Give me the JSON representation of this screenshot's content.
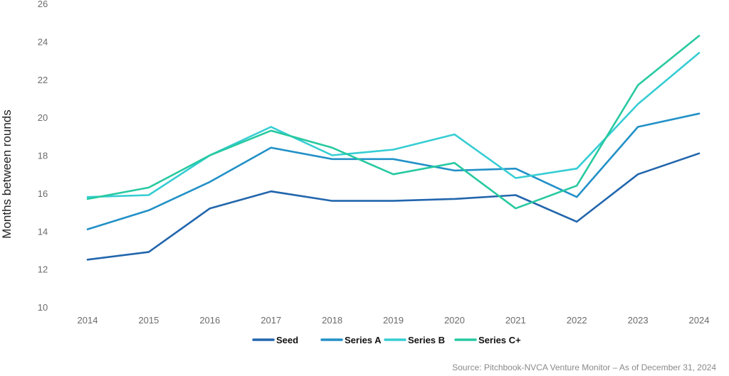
{
  "chart_data": {
    "type": "line",
    "title": "",
    "xlabel": "",
    "ylabel": "Months between rounds",
    "ylim": [
      10,
      26
    ],
    "yticks": [
      10,
      12,
      14,
      16,
      18,
      20,
      22,
      24,
      26
    ],
    "categories": [
      "2014",
      "2015",
      "2016",
      "2017",
      "2018",
      "2019",
      "2020",
      "2021",
      "2022",
      "2023",
      "2024"
    ],
    "grid": false,
    "legend_position": "bottom",
    "series": [
      {
        "name": "Seed",
        "color": "#2266ad",
        "values": [
          12.5,
          12.9,
          15.2,
          16.1,
          15.6,
          15.6,
          15.7,
          15.9,
          14.5,
          17.0,
          18.1
        ]
      },
      {
        "name": "Series A",
        "color": "#2291c7",
        "values": [
          14.1,
          15.1,
          16.6,
          18.4,
          17.8,
          17.8,
          17.2,
          17.3,
          15.8,
          19.5,
          20.2
        ]
      },
      {
        "name": "Series B",
        "color": "#36cdd3",
        "values": [
          15.8,
          15.9,
          18.0,
          19.5,
          18.0,
          18.3,
          19.1,
          16.8,
          17.3,
          20.7,
          23.4
        ]
      },
      {
        "name": "Series C+",
        "color": "#27c9a0",
        "values": [
          15.7,
          16.3,
          18.0,
          19.3,
          18.4,
          17.0,
          17.6,
          15.2,
          16.4,
          21.7,
          24.3
        ]
      }
    ],
    "source": "Source: Pitchbook-NVCA Venture Monitor – As of December 31, 2024"
  }
}
